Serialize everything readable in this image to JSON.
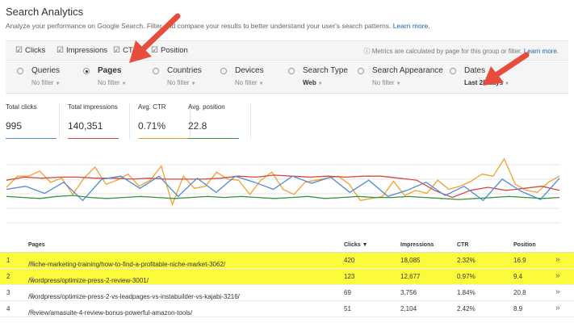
{
  "header": {
    "title": "Search Analytics",
    "subtitle": "Analyze your performance on Google Search. Filter and compare your results to better understand your user's search patterns.",
    "learn_more": "Learn more."
  },
  "metrics": {
    "clicks": "Clicks",
    "impressions": "Impressions",
    "ctr": "CTR",
    "position": "Position",
    "note": "Metrics are calculated by page for this group or filter.",
    "note_link": "Learn more."
  },
  "filters": [
    {
      "label": "Queries",
      "value": "No filter",
      "selected": false
    },
    {
      "label": "Pages",
      "value": "No filter",
      "selected": true
    },
    {
      "label": "Countries",
      "value": "No filter",
      "selected": false
    },
    {
      "label": "Devices",
      "value": "No filter",
      "selected": false
    },
    {
      "label": "Search Type",
      "value": "Web",
      "selected": false
    },
    {
      "label": "Search Appearance",
      "value": "No filter",
      "selected": false
    },
    {
      "label": "Dates",
      "value": "Last 28 days",
      "selected": false
    }
  ],
  "stats": [
    {
      "name": "Total clicks",
      "value": "995",
      "color": "#4f8bd6"
    },
    {
      "name": "Total impressions",
      "value": "140,351",
      "color": "#d4493e"
    },
    {
      "name": "Avg. CTR",
      "value": "0.71%",
      "color": "#f0a030"
    },
    {
      "name": "Avg. position",
      "value": "22.8",
      "color": "#3b9440"
    }
  ],
  "chart_data": {
    "type": "line",
    "grid": true,
    "series": [
      {
        "color": "#f0a030",
        "values": [
          3.5,
          4.6,
          4.6,
          5.1,
          4.0,
          4.4,
          2.8,
          4.4,
          5.5,
          3.8,
          4.2,
          4.8,
          3.6,
          4.2,
          5.6,
          1.8,
          4.6,
          3.4,
          3.6,
          5.0,
          4.3,
          4.2,
          2.8,
          4.2,
          5.0,
          3.3,
          2.8,
          4.0,
          4.2,
          4.4,
          4.6,
          3.8,
          2.2,
          2.4,
          2.6,
          4.1,
          2.7,
          3.2,
          2.9,
          4.2,
          3.3,
          3.6,
          4.1,
          4.8,
          4.6,
          6.3,
          3.8,
          3.2,
          3.0,
          4.0,
          4.6
        ]
      },
      {
        "color": "#d4493e",
        "values": [
          4.2,
          4.5,
          4.4,
          4.5,
          4.5,
          4.4,
          4.4,
          4.3,
          4.4,
          4.3,
          4.3,
          4.3,
          4.4,
          4.6,
          4.5,
          4.7,
          4.6,
          4.5,
          4.6,
          4.5,
          4.6,
          4.6,
          4.4,
          4.2,
          3.2,
          2.5,
          3.2,
          3.5,
          3.2,
          3.4,
          3.6,
          3.2
        ]
      },
      {
        "color": "#4f8bd6",
        "values": [
          3.3,
          3.6,
          2.9,
          4.0,
          2.2,
          4.3,
          4.6,
          3.4,
          4.6,
          2.6,
          4.4,
          3.0,
          4.6,
          4.0,
          3.3,
          4.6,
          3.9,
          4.5,
          3.0,
          4.2,
          2.6,
          3.2,
          4.0,
          2.7,
          3.6,
          2.2,
          4.3,
          3.1,
          2.3,
          4.4
        ]
      },
      {
        "color": "#3b9440",
        "values": [
          2.6,
          2.5,
          2.4,
          2.6,
          2.7,
          2.5,
          2.4,
          2.5,
          2.6,
          2.5,
          2.4,
          2.5,
          2.6,
          2.5,
          2.6,
          2.5,
          2.4,
          2.5,
          2.6,
          2.4,
          2.5,
          2.6,
          2.5,
          2.5,
          2.6,
          2.5,
          2.4,
          2.3,
          2.4,
          2.5,
          2.6,
          2.5,
          2.4,
          2.5
        ]
      }
    ]
  },
  "table": {
    "headers": [
      "Pages",
      "Clicks ▼",
      "Impressions",
      "CTR",
      "Position"
    ],
    "rows": [
      {
        "num": "1",
        "page": "/niche-marketing-training/how-to-find-a-profitable-niche-market-3062/",
        "clicks": "420",
        "impressions": "18,085",
        "ctr": "2.32%",
        "position": "16.9",
        "highlight": true
      },
      {
        "num": "2",
        "page": "/wordpress/optimize-press-2-review-3001/",
        "clicks": "123",
        "impressions": "12,677",
        "ctr": "0.97%",
        "position": "9.4",
        "highlight": true
      },
      {
        "num": "3",
        "page": "/wordpress/optimize-press-2-vs-leadpages-vs-instabuilder-vs-kajabi-3216/",
        "clicks": "69",
        "impressions": "3,756",
        "ctr": "1.84%",
        "position": "20.8",
        "highlight": false
      },
      {
        "num": "4",
        "page": "/review/amasuite-4-review-bonus-powerful-amazon-tools/",
        "clicks": "51",
        "impressions": "2,104",
        "ctr": "2.42%",
        "position": "8.9",
        "highlight": false
      }
    ]
  }
}
